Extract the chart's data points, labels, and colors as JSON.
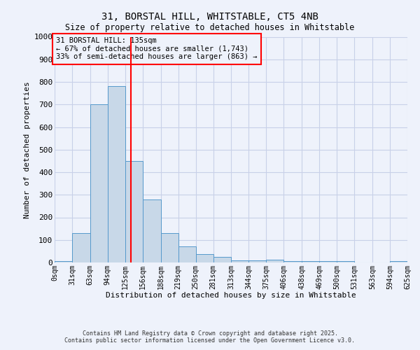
{
  "title1": "31, BORSTAL HILL, WHITSTABLE, CT5 4NB",
  "title2": "Size of property relative to detached houses in Whitstable",
  "xlabel": "Distribution of detached houses by size in Whitstable",
  "ylabel": "Number of detached properties",
  "bin_edges": [
    0,
    31,
    63,
    94,
    125,
    156,
    188,
    219,
    250,
    281,
    313,
    344,
    375,
    406,
    438,
    469,
    500,
    531,
    563,
    594,
    625
  ],
  "bar_heights": [
    5,
    130,
    700,
    780,
    450,
    280,
    130,
    70,
    38,
    25,
    10,
    8,
    12,
    5,
    5,
    5,
    5,
    0,
    0,
    5
  ],
  "bar_color": "#c8d8e8",
  "bar_edge_color": "#5599cc",
  "vline_x": 135,
  "vline_color": "red",
  "annotation_text_line1": "31 BORSTAL HILL: 135sqm",
  "annotation_text_line2": "← 67% of detached houses are smaller (1,743)",
  "annotation_text_line3": "33% of semi-detached houses are larger (863) →",
  "ylim": [
    0,
    1000
  ],
  "xlim": [
    0,
    625
  ],
  "yticks": [
    0,
    100,
    200,
    300,
    400,
    500,
    600,
    700,
    800,
    900,
    1000
  ],
  "xtick_labels": [
    "0sqm",
    "31sqm",
    "63sqm",
    "94sqm",
    "125sqm",
    "156sqm",
    "188sqm",
    "219sqm",
    "250sqm",
    "281sqm",
    "313sqm",
    "344sqm",
    "375sqm",
    "406sqm",
    "438sqm",
    "469sqm",
    "500sqm",
    "531sqm",
    "563sqm",
    "594sqm",
    "625sqm"
  ],
  "footer1": "Contains HM Land Registry data © Crown copyright and database right 2025.",
  "footer2": "Contains public sector information licensed under the Open Government Licence v3.0.",
  "background_color": "#eef2fb",
  "grid_color": "#c8d0e8"
}
